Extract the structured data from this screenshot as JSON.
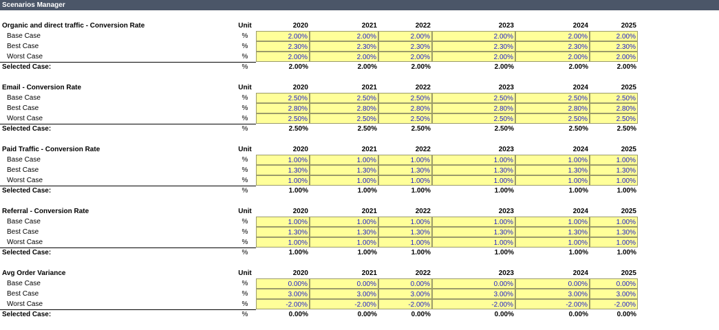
{
  "title": "Scenarios Manager",
  "unit_header": "Unit",
  "years": [
    "2020",
    "2021",
    "2022",
    "2023",
    "2024",
    "2025"
  ],
  "blocks": [
    {
      "title": "Organic and direct traffic - Conversion Rate",
      "rows": [
        {
          "label": "Base Case",
          "unit": "%",
          "values": [
            "2.00%",
            "2.00%",
            "2.00%",
            "2.00%",
            "2.00%",
            "2.00%"
          ]
        },
        {
          "label": "Best Case",
          "unit": "%",
          "values": [
            "2.30%",
            "2.30%",
            "2.30%",
            "2.30%",
            "2.30%",
            "2.30%"
          ]
        },
        {
          "label": "Worst Case",
          "unit": "%",
          "values": [
            "2.00%",
            "2.00%",
            "2.00%",
            "2.00%",
            "2.00%",
            "2.00%"
          ]
        }
      ],
      "selected": {
        "label": "Selected Case:",
        "unit": "%",
        "values": [
          "2.00%",
          "2.00%",
          "2.00%",
          "2.00%",
          "2.00%",
          "2.00%"
        ]
      }
    },
    {
      "title": "Email  - Conversion Rate",
      "rows": [
        {
          "label": "Base Case",
          "unit": "%",
          "values": [
            "2.50%",
            "2.50%",
            "2.50%",
            "2.50%",
            "2.50%",
            "2.50%"
          ]
        },
        {
          "label": "Best Case",
          "unit": "%",
          "values": [
            "2.80%",
            "2.80%",
            "2.80%",
            "2.80%",
            "2.80%",
            "2.80%"
          ]
        },
        {
          "label": "Worst Case",
          "unit": "%",
          "values": [
            "2.50%",
            "2.50%",
            "2.50%",
            "2.50%",
            "2.50%",
            "2.50%"
          ]
        }
      ],
      "selected": {
        "label": "Selected Case:",
        "unit": "%",
        "values": [
          "2.50%",
          "2.50%",
          "2.50%",
          "2.50%",
          "2.50%",
          "2.50%"
        ]
      }
    },
    {
      "title": "Paid Traffic - Conversion Rate",
      "rows": [
        {
          "label": "Base Case",
          "unit": "%",
          "values": [
            "1.00%",
            "1.00%",
            "1.00%",
            "1.00%",
            "1.00%",
            "1.00%"
          ]
        },
        {
          "label": "Best Case",
          "unit": "%",
          "values": [
            "1.30%",
            "1.30%",
            "1.30%",
            "1.30%",
            "1.30%",
            "1.30%"
          ]
        },
        {
          "label": "Worst Case",
          "unit": "%",
          "values": [
            "1.00%",
            "1.00%",
            "1.00%",
            "1.00%",
            "1.00%",
            "1.00%"
          ]
        }
      ],
      "selected": {
        "label": "Selected Case:",
        "unit": "%",
        "values": [
          "1.00%",
          "1.00%",
          "1.00%",
          "1.00%",
          "1.00%",
          "1.00%"
        ]
      }
    },
    {
      "title": "Referral - Conversion Rate",
      "rows": [
        {
          "label": "Base Case",
          "unit": "%",
          "values": [
            "1.00%",
            "1.00%",
            "1.00%",
            "1.00%",
            "1.00%",
            "1.00%"
          ]
        },
        {
          "label": "Best Case",
          "unit": "%",
          "values": [
            "1.30%",
            "1.30%",
            "1.30%",
            "1.30%",
            "1.30%",
            "1.30%"
          ]
        },
        {
          "label": "Worst Case",
          "unit": "%",
          "values": [
            "1.00%",
            "1.00%",
            "1.00%",
            "1.00%",
            "1.00%",
            "1.00%"
          ]
        }
      ],
      "selected": {
        "label": "Selected Case:",
        "unit": "%",
        "values": [
          "1.00%",
          "1.00%",
          "1.00%",
          "1.00%",
          "1.00%",
          "1.00%"
        ]
      }
    },
    {
      "title": "Avg Order Variance",
      "rows": [
        {
          "label": "Base Case",
          "unit": "%",
          "values": [
            "0.00%",
            "0.00%",
            "0.00%",
            "0.00%",
            "0.00%",
            "0.00%"
          ]
        },
        {
          "label": "Best Case",
          "unit": "%",
          "values": [
            "3.00%",
            "3.00%",
            "3.00%",
            "3.00%",
            "3.00%",
            "3.00%"
          ]
        },
        {
          "label": "Worst Case",
          "unit": "%",
          "values": [
            "-2.00%",
            "-2.00%",
            "-2.00%",
            "-2.00%",
            "-2.00%",
            "-2.00%"
          ]
        }
      ],
      "selected": {
        "label": "Selected Case:",
        "unit": "%",
        "values": [
          "0.00%",
          "0.00%",
          "0.00%",
          "0.00%",
          "0.00%",
          "0.00%"
        ]
      }
    }
  ]
}
